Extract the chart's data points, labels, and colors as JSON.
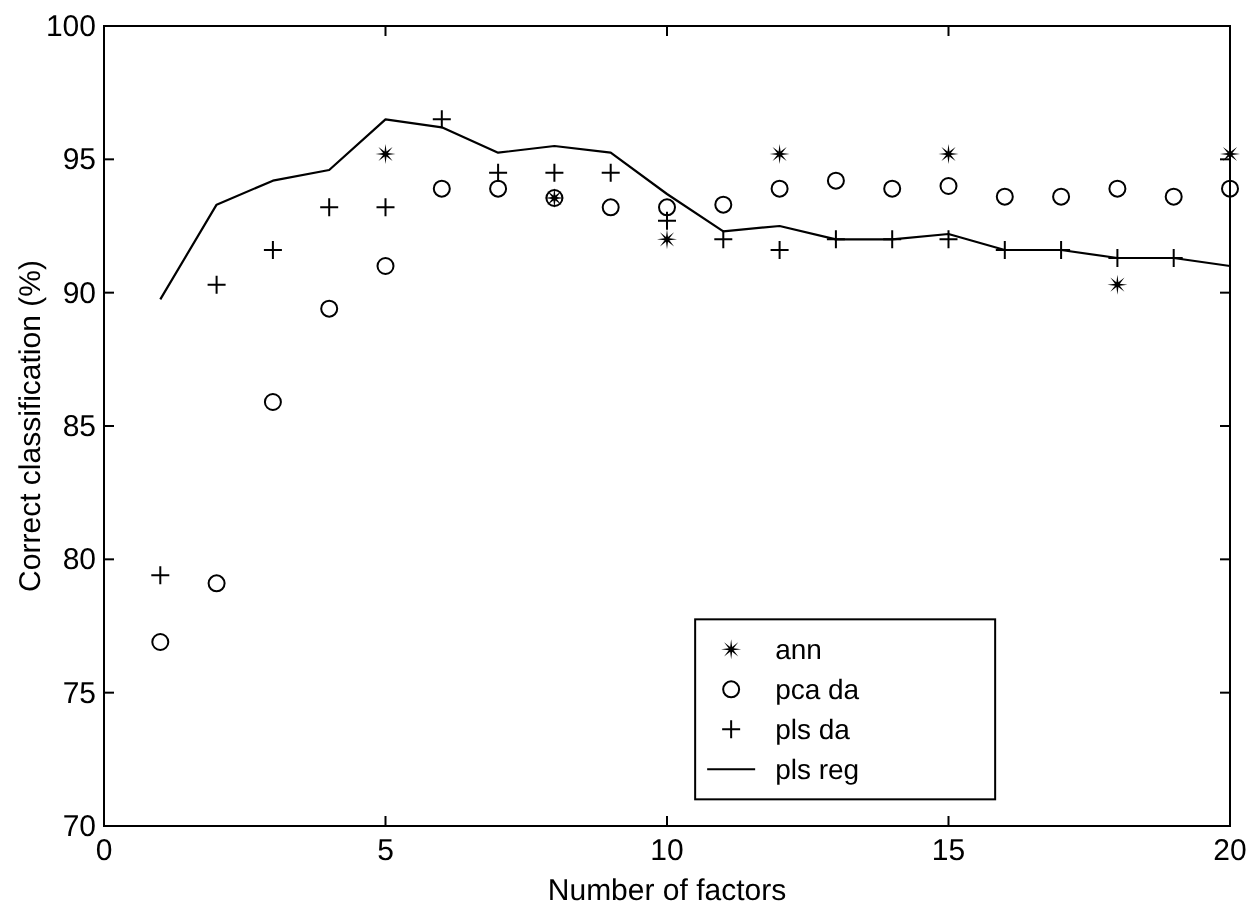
{
  "chart_data": {
    "type": "scatter",
    "xlabel": "Number of factors",
    "ylabel": "Correct classification (%)",
    "xlim": [
      0,
      20
    ],
    "ylim": [
      70,
      100
    ],
    "xticks": [
      0,
      5,
      10,
      15,
      20
    ],
    "yticks": [
      70,
      75,
      80,
      85,
      90,
      95,
      100
    ],
    "grid": false,
    "legend": "bottom right",
    "series": [
      {
        "name": "ann",
        "marker": "star",
        "color": "#000000",
        "x": [
          5,
          8,
          10,
          12,
          15,
          18,
          20
        ],
        "values": [
          95.2,
          93.55,
          92.0,
          95.2,
          95.2,
          90.3,
          95.2
        ]
      },
      {
        "name": "pca da",
        "marker": "circle",
        "color": "#000000",
        "x": [
          1,
          2,
          3,
          4,
          5,
          6,
          7,
          8,
          9,
          10,
          11,
          12,
          13,
          14,
          15,
          16,
          17,
          18,
          19,
          20
        ],
        "values": [
          76.9,
          79.1,
          85.9,
          89.4,
          91.0,
          93.9,
          93.9,
          93.55,
          93.2,
          93.2,
          93.3,
          93.9,
          94.2,
          93.9,
          94.0,
          93.6,
          93.6,
          93.9,
          93.6,
          93.9
        ]
      },
      {
        "name": "pls da",
        "marker": "cross",
        "color": "#000000",
        "x": [
          1,
          2,
          3,
          4,
          5,
          6,
          7,
          8,
          9,
          10,
          11,
          12,
          13,
          14,
          15,
          16,
          17,
          18,
          19
        ],
        "values": [
          79.4,
          90.3,
          91.6,
          93.2,
          93.2,
          96.5,
          94.5,
          94.5,
          94.5,
          92.7,
          92.0,
          91.6,
          92.0,
          92.0,
          92.0,
          91.6,
          91.6,
          91.3,
          91.3
        ]
      },
      {
        "name": "pls reg",
        "type": "line",
        "marker": "none",
        "line_style": "solid",
        "color": "#000000",
        "x": [
          1,
          2,
          3,
          4,
          5,
          6,
          7,
          8,
          9,
          10,
          11,
          12,
          13,
          14,
          15,
          16,
          17,
          18,
          19,
          20
        ],
        "values": [
          89.75,
          93.3,
          94.2,
          94.6,
          96.5,
          96.2,
          95.25,
          95.5,
          95.25,
          93.7,
          92.3,
          92.5,
          92.0,
          92.0,
          92.2,
          91.6,
          91.6,
          91.3,
          91.3,
          91.0
        ]
      }
    ]
  }
}
